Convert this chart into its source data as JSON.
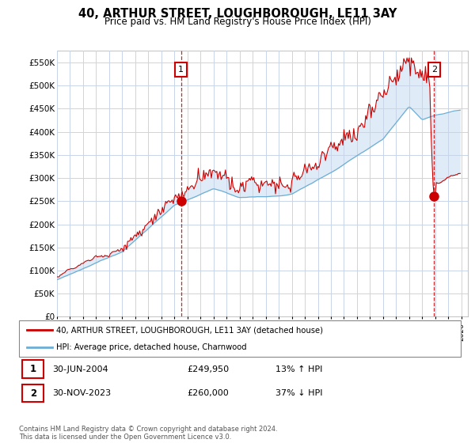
{
  "title": "40, ARTHUR STREET, LOUGHBOROUGH, LE11 3AY",
  "subtitle": "Price paid vs. HM Land Registry's House Price Index (HPI)",
  "ytick_values": [
    0,
    50000,
    100000,
    150000,
    200000,
    250000,
    300000,
    350000,
    400000,
    450000,
    500000,
    550000
  ],
  "ylim": [
    0,
    575000
  ],
  "xlim_start": 1995.0,
  "xlim_end": 2026.5,
  "sale1_x": 2004.5,
  "sale1_y": 249950,
  "sale2_x": 2023.917,
  "sale2_y": 260000,
  "legend_line1": "40, ARTHUR STREET, LOUGHBOROUGH, LE11 3AY (detached house)",
  "legend_line2": "HPI: Average price, detached house, Charnwood",
  "table_row1": [
    "1",
    "30-JUN-2004",
    "£249,950",
    "13% ↑ HPI"
  ],
  "table_row2": [
    "2",
    "30-NOV-2023",
    "£260,000",
    "37% ↓ HPI"
  ],
  "footer": "Contains HM Land Registry data © Crown copyright and database right 2024.\nThis data is licensed under the Open Government Licence v3.0.",
  "hpi_color": "#6baed6",
  "price_color": "#cc0000",
  "fill_color": "#c6dcf0",
  "bg_color": "#ffffff",
  "grid_color": "#c8d4e8",
  "label_box_color": "#cc0000"
}
